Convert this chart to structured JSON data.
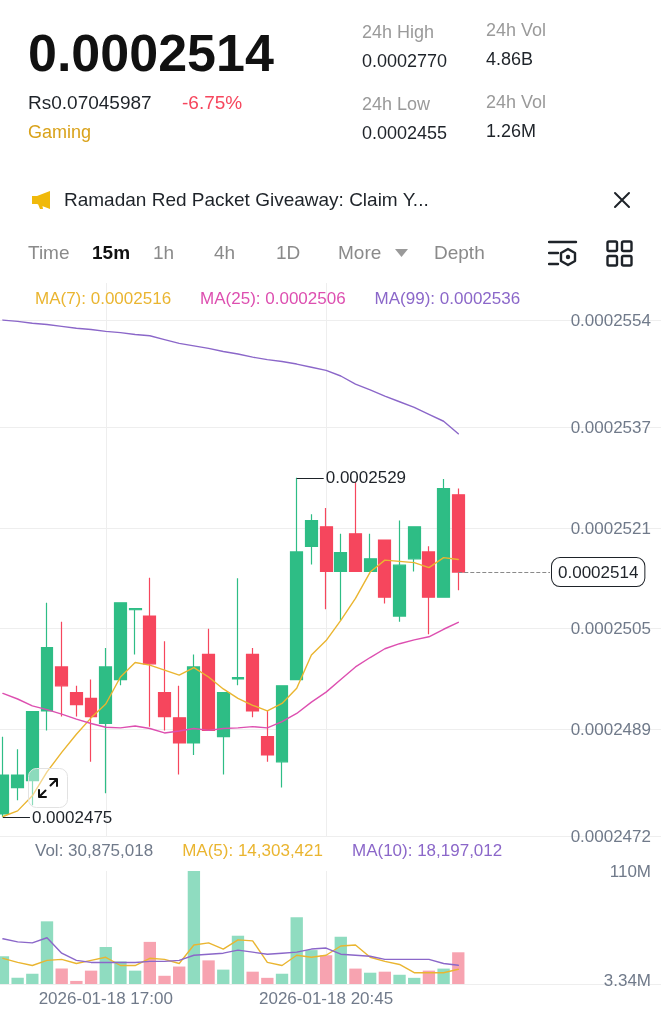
{
  "chart_data": [
    {
      "type": "candlestick",
      "x": [
        "2026-01-18T15:15",
        "2026-01-18T15:30",
        "2026-01-18T15:45",
        "2026-01-18T16:00",
        "2026-01-18T16:15",
        "2026-01-18T16:30",
        "2026-01-18T16:45",
        "2026-01-18T17:00",
        "2026-01-18T17:15",
        "2026-01-18T17:30",
        "2026-01-18T17:45",
        "2026-01-18T18:00",
        "2026-01-18T18:15",
        "2026-01-18T18:30",
        "2026-01-18T18:45",
        "2026-01-18T19:00",
        "2026-01-18T19:15",
        "2026-01-18T19:30",
        "2026-01-18T19:45",
        "2026-01-18T20:00",
        "2026-01-18T20:15",
        "2026-01-18T20:30",
        "2026-01-18T20:45",
        "2026-01-18T21:00",
        "2026-01-18T21:15",
        "2026-01-18T21:30",
        "2026-01-18T21:45",
        "2026-01-18T22:00",
        "2026-01-18T22:15",
        "2026-01-18T22:30",
        "2026-01-18T22:45",
        "2026-01-18T23:00"
      ],
      "ohlc": [
        [
          0.00024755,
          0.00024878,
          0.0002475,
          0.00024817
        ],
        [
          0.00024797,
          0.00024858,
          0.00024777,
          0.00024817
        ],
        [
          0.00024808,
          0.00024918,
          0.00024769,
          0.00024918
        ],
        [
          0.00024919,
          0.00025091,
          0.00024888,
          0.0002502
        ],
        [
          0.00024989,
          0.00025061,
          0.0002491,
          0.00024959
        ],
        [
          0.00024948,
          0.00024959,
          0.0002491,
          0.00024929
        ],
        [
          0.00024939,
          0.00024969,
          0.00024838,
          0.0002491
        ],
        [
          0.00024899,
          0.00025019,
          0.00024788,
          0.00024989
        ],
        [
          0.00024969,
          0.00025091,
          0.0002496,
          0.00025091
        ],
        [
          0.0002508,
          0.00025082,
          0.00025009,
          0.00025082
        ],
        [
          0.0002507,
          0.00025131,
          0.00024894,
          0.00024994
        ],
        [
          0.00024948,
          0.0002503,
          0.00024888,
          0.0002491
        ],
        [
          0.00024908,
          0.00024959,
          0.00024818,
          0.00024868
        ],
        [
          0.00024868,
          0.00025009,
          0.00024849,
          0.00024989
        ],
        [
          0.00025009,
          0.0002505,
          0.00024888,
          0.00024888
        ],
        [
          0.00024878,
          0.00024948,
          0.00024818,
          0.00024948
        ],
        [
          0.0002497,
          0.0002513,
          0.0002496,
          0.00024972
        ],
        [
          0.00025009,
          0.00025019,
          0.00024909,
          0.00024919
        ],
        [
          0.00024878,
          0.00024919,
          0.00024838,
          0.00024849
        ],
        [
          0.00024838,
          0.00024959,
          0.00024797,
          0.00024959
        ],
        [
          0.00024969,
          0.0002529,
          0.00024969,
          0.00025172
        ],
        [
          0.00025181,
          0.00025232,
          0.00025152,
          0.00025222
        ],
        [
          0.00025212,
          0.00025242,
          0.00025081,
          0.00025141
        ],
        [
          0.00025141,
          0.00025201,
          0.00025063,
          0.00025171
        ],
        [
          0.00025201,
          0.00025283,
          0.00025141,
          0.00025141
        ],
        [
          0.00025141,
          0.00025201,
          0.00025141,
          0.00025161
        ],
        [
          0.00025191,
          0.00025191,
          0.0002509,
          0.000251
        ],
        [
          0.0002507,
          0.00025222,
          0.00025061,
          0.00025151
        ],
        [
          0.00025161,
          0.00025212,
          0.00025141,
          0.00025212
        ],
        [
          0.00025172,
          0.00025181,
          0.00025041,
          0.000251
        ],
        [
          0.000251,
          0.00025288,
          0.000251,
          0.00025273
        ],
        [
          0.00025263,
          0.00025273,
          0.00025111,
          0.0002514
        ]
      ],
      "colors": [
        "#2ebd85",
        "#2ebd85",
        "#2ebd85",
        "#2ebd85",
        "#f6465d",
        "#f6465d",
        "#f6465d",
        "#2ebd85",
        "#2ebd85",
        "#2ebd85",
        "#f6465d",
        "#f6465d",
        "#f6465d",
        "#2ebd85",
        "#f6465d",
        "#2ebd85",
        "#2ebd85",
        "#f6465d",
        "#f6465d",
        "#2ebd85",
        "#2ebd85",
        "#2ebd85",
        "#f6465d",
        "#2ebd85",
        "#f6465d",
        "#2ebd85",
        "#f6465d",
        "#2ebd85",
        "#2ebd85",
        "#f6465d",
        "#2ebd85",
        "#f6465d"
      ],
      "series": [
        {
          "type": "line",
          "name": "MA(7): 0.0002516",
          "color": "#eab530",
          "values": [
            0.00024751,
            0.0002476,
            0.00024784,
            0.00024822,
            0.00024853,
            0.00024882,
            0.00024908,
            0.0002493,
            0.00024973,
            0.00024996,
            0.00024992,
            0.00024984,
            0.00024976,
            0.00024988,
            0.00024973,
            0.00024954,
            0.00024939,
            0.00024928,
            0.00024919,
            0.00024931,
            0.00024955,
            0.00025008,
            0.00025031,
            0.00025063,
            0.00025098,
            0.0002514,
            0.00025159,
            0.00025157,
            0.00025155,
            0.00025147,
            0.00025163,
            0.0002516
          ]
        },
        {
          "type": "line",
          "name": "MA(25): 0.0002506",
          "color": "#dd4fb0",
          "values": [
            0.00024947,
            0.00024938,
            0.00024927,
            0.00024921,
            0.00024914,
            0.00024906,
            0.00024899,
            0.00024893,
            0.00024892,
            0.00024895,
            0.00024891,
            0.00024884,
            0.00024887,
            0.00024891,
            0.00024888,
            0.00024891,
            0.00024892,
            0.00024894,
            0.00024892,
            0.00024902,
            0.00024915,
            0.00024933,
            0.00024949,
            0.00024969,
            0.00024989,
            0.00025004,
            0.00025018,
            0.00025026,
            0.00025032,
            0.00025037,
            0.00025049,
            0.0002506
          ]
        },
        {
          "type": "line",
          "name": "MA(99): 0.0002536",
          "color": "#8b67c9",
          "values": [
            0.00025541,
            0.00025539,
            0.00025536,
            0.00025534,
            0.00025531,
            0.00025528,
            0.00025526,
            0.00025523,
            0.00025521,
            0.00025518,
            0.00025516,
            0.0002551,
            0.00025504,
            0.000255,
            0.00025496,
            0.00025491,
            0.00025487,
            0.00025482,
            0.00025478,
            0.00025475,
            0.00025471,
            0.00025466,
            0.00025461,
            0.00025452,
            0.00025439,
            0.0002543,
            0.0002542,
            0.00025411,
            0.00025402,
            0.00025391,
            0.0002538,
            0.0002536
          ]
        }
      ],
      "xlim": [
        "2026-01-18T15:12",
        "2026-01-19T02:27"
      ],
      "xticks": [
        {
          "value": "2026-01-18T17:00",
          "label": null
        },
        {
          "value": "2026-01-18T20:45",
          "label": null
        }
      ],
      "ylim": [
        0.0002472,
        0.000256
      ],
      "yticks": [
        0.0002472,
        0.0002489,
        0.0002505,
        0.0002521,
        0.0002537,
        0.0002554
      ],
      "grid": true,
      "legend": "top left",
      "tick_labels": "y",
      "marker": "none",
      "ref_lines": [
        {
          "axis": "y",
          "value": 0.0002514,
          "label": "0.0002514",
          "line_style": "dashed"
        }
      ],
      "annotations": [
        "0.0002514",
        "Rs0.07045987",
        "-6.75%",
        "Gaming",
        "24h High",
        "0.0002770",
        "24h Low",
        "0.0002455",
        "24h Vol",
        "4.86B",
        "24h Vol",
        "1.26M",
        "Ramadan Red Packet Giveaway: Claim Y...",
        "Time",
        "15m",
        "1h",
        "4h",
        "1D",
        "More",
        "Depth",
        {
          "text": "0.0002529",
          "x": "2026-01-18T20:15",
          "y": 0.0002529
        },
        {
          "text": "0.0002475",
          "x": "2026-01-18T15:15",
          "y": 0.0002475
        }
      ]
    },
    {
      "type": "bar",
      "x": [
        "2026-01-18T15:15",
        "2026-01-18T15:30",
        "2026-01-18T15:45",
        "2026-01-18T16:00",
        "2026-01-18T16:15",
        "2026-01-18T16:30",
        "2026-01-18T16:45",
        "2026-01-18T17:00",
        "2026-01-18T17:15",
        "2026-01-18T17:30",
        "2026-01-18T17:45",
        "2026-01-18T18:00",
        "2026-01-18T18:15",
        "2026-01-18T18:30",
        "2026-01-18T18:45",
        "2026-01-18T19:00",
        "2026-01-18T19:15",
        "2026-01-18T19:30",
        "2026-01-18T19:45",
        "2026-01-18T20:00",
        "2026-01-18T20:15",
        "2026-01-18T20:30",
        "2026-01-18T20:45",
        "2026-01-18T21:00",
        "2026-01-18T21:15",
        "2026-01-18T21:30",
        "2026-01-18T21:45",
        "2026-01-18T22:00",
        "2026-01-18T22:15",
        "2026-01-18T22:30",
        "2026-01-18T22:45",
        "2026-01-18T23:00"
      ],
      "series": [
        {
          "name": "Vol: 30,875,018",
          "colors": [
            "#8fdcc0",
            "#8fdcc0",
            "#8fdcc0",
            "#8fdcc0",
            "#f7a3b0",
            "#f7a3b0",
            "#f7a3b0",
            "#8fdcc0",
            "#8fdcc0",
            "#8fdcc0",
            "#f7a3b0",
            "#f7a3b0",
            "#f7a3b0",
            "#8fdcc0",
            "#f7a3b0",
            "#8fdcc0",
            "#8fdcc0",
            "#f7a3b0",
            "#f7a3b0",
            "#8fdcc0",
            "#8fdcc0",
            "#8fdcc0",
            "#f7a3b0",
            "#8fdcc0",
            "#f7a3b0",
            "#8fdcc0",
            "#f7a3b0",
            "#8fdcc0",
            "#8fdcc0",
            "#f7a3b0",
            "#8fdcc0",
            "#f7a3b0"
          ],
          "values": [
            27000000,
            6000000,
            10000000,
            61000000,
            15000000,
            3000000,
            13000000,
            36000000,
            22000000,
            13000000,
            41000000,
            8000000,
            17000000,
            110000000,
            23000000,
            14000000,
            47000000,
            12000000,
            6000000,
            10000000,
            65000000,
            33000000,
            28000000,
            46000000,
            15000000,
            11000000,
            12000000,
            9000000,
            6000000,
            13000000,
            15000000,
            30875018
          ]
        },
        {
          "type": "line",
          "name": "MA(5): 14,303,421",
          "color": "#eab530",
          "values": [
            25000000,
            21000000,
            18000000,
            23000000,
            24000000,
            20000000,
            23000000,
            26000000,
            18000000,
            18000000,
            25000000,
            24000000,
            20000000,
            38000000,
            40000000,
            34000000,
            43000000,
            42000000,
            21000000,
            18000000,
            28000000,
            26000000,
            28000000,
            37000000,
            38000000,
            26000000,
            22000000,
            19000000,
            11000000,
            11000000,
            11000000,
            14303421
          ]
        },
        {
          "type": "line",
          "name": "MA(10): 18,197,012",
          "color": "#8b67c9",
          "values": [
            44000000,
            41000000,
            40000000,
            45000000,
            30000000,
            23000000,
            21000000,
            21000000,
            21000000,
            21000000,
            22000000,
            22000000,
            23000000,
            28000000,
            29000000,
            30000000,
            33000000,
            31000000,
            29000000,
            30000000,
            31000000,
            34000000,
            35000000,
            29000000,
            28000000,
            27000000,
            24000000,
            24000000,
            24000000,
            24000000,
            20000000,
            18197012
          ]
        }
      ],
      "xlim": [
        "2026-01-18T15:12",
        "2026-01-19T02:27"
      ],
      "xticks": [
        {
          "value": "2026-01-18T17:00",
          "label": "2026-01-18 17:00"
        },
        {
          "value": "2026-01-18T20:45",
          "label": "2026-01-18 20:45"
        }
      ],
      "ylim": [
        0,
        110000000
      ],
      "yticks": [
        {
          "value": 3340000,
          "label": "3.34M"
        },
        {
          "value": 110000000,
          "label": "110M"
        }
      ],
      "grid": "x",
      "legend": "top left",
      "marker": "none"
    }
  ]
}
